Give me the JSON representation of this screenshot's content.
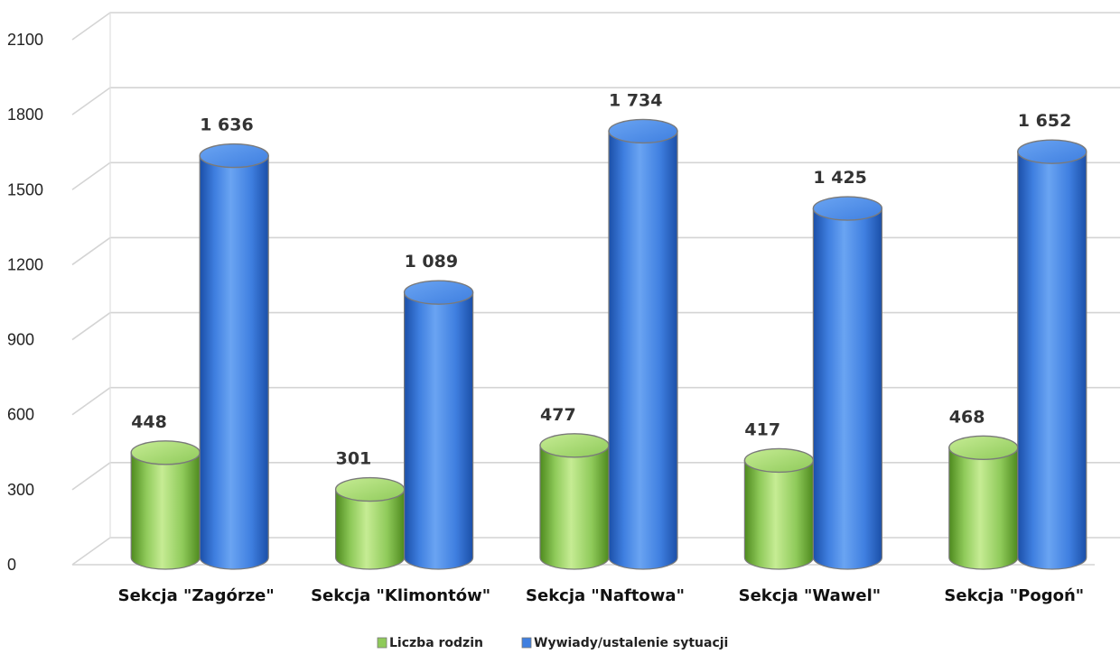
{
  "chart_data": {
    "type": "bar",
    "style": "3d-cylinder",
    "categories": [
      "Sekcja \"Zagórze\"",
      "Sekcja \"Klimontów\"",
      "Sekcja \"Naftowa\"",
      "Sekcja \"Wawel\"",
      "Sekcja \"Pogoń\""
    ],
    "series": [
      {
        "name": "Liczba rodzin",
        "values": [
          448,
          301,
          477,
          417,
          468
        ],
        "labels": [
          "448",
          "301",
          "477",
          "417",
          "468"
        ],
        "color": "#8fca5a",
        "light_color": "#c6ec94",
        "dark_color": "#4e8a1e"
      },
      {
        "name": "Wywiady/ustalenie sytuacji",
        "values": [
          1636,
          1089,
          1734,
          1425,
          1652
        ],
        "labels": [
          "1 636",
          "1 089",
          "1 734",
          "1 425",
          "1 652"
        ],
        "color": "#3f7fe0",
        "light_color": "#6aa4f2",
        "dark_color": "#1b4fa8"
      }
    ],
    "ylim": [
      0,
      2100
    ],
    "yticks": [
      "0",
      "300",
      "600",
      "900",
      "1200",
      "1500",
      "1800",
      "2100"
    ],
    "ytick_values": [
      0,
      300,
      600,
      900,
      1200,
      1500,
      1800,
      2100
    ],
    "grid": true,
    "legend_position": "bottom-center",
    "title": "",
    "xlabel": "",
    "ylabel": ""
  }
}
